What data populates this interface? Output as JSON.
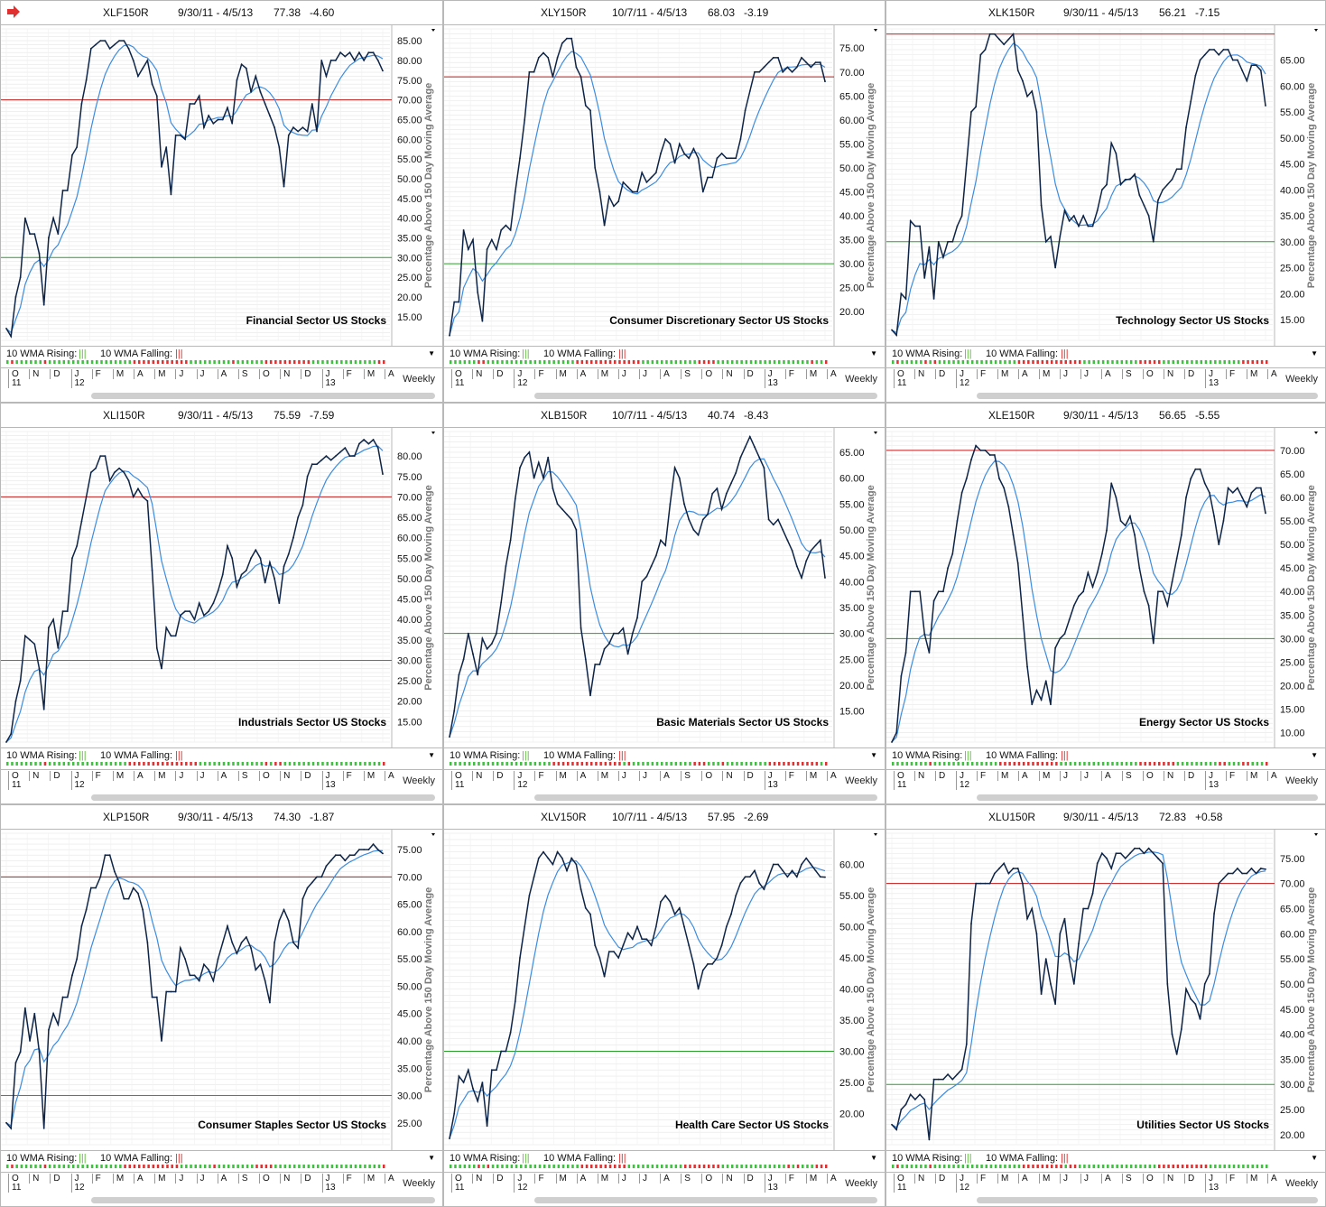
{
  "ui": {
    "wma_rising_label": "10 WMA Rising:",
    "wma_falling_label": "10 WMA Falling:",
    "weekly_label": "Weekly",
    "rising_marks": "|||",
    "falling_marks": "|||"
  },
  "colors": {
    "price": "#0d2447",
    "ma": "#3c8ce0",
    "upper": "#c01818",
    "lower": "#2aa02a",
    "grid": "#e6e6e6",
    "dot_green": "#40c040",
    "dot_red": "#e03030"
  },
  "x_axis": {
    "months": [
      "O",
      "N",
      "D",
      "J",
      "F",
      "M",
      "A",
      "M",
      "J",
      "J",
      "A",
      "S",
      "O",
      "N",
      "D",
      "J",
      "F",
      "M",
      "A"
    ],
    "years": [
      {
        "label": "11",
        "month_index": 0
      },
      {
        "label": "12",
        "month_index": 3
      },
      {
        "label": "13",
        "month_index": 15
      }
    ]
  },
  "chart_data": [
    {
      "type": "line",
      "symbol": "XLF150R",
      "range": "9/30/11 - 4/5/13",
      "last": "77.38",
      "change": "-4.60",
      "label": "Financial Sector US Stocks",
      "ylabel": "Percentage Above 150 Day Moving Average",
      "ylim": [
        9,
        88
      ],
      "yticks": [
        "85.00",
        "80.00",
        "75.00",
        "70.00",
        "65.00",
        "60.00",
        "55.00",
        "50.00",
        "45.00",
        "40.00",
        "35.00",
        "30.00",
        "25.00",
        "20.00",
        "15.00"
      ],
      "upper_line": 70,
      "lower_line": 30,
      "series": [
        {
          "values": [
            12,
            10,
            20,
            25,
            40,
            36,
            36,
            31,
            18,
            35,
            40,
            36,
            47,
            47,
            56,
            58,
            69,
            75,
            83,
            84,
            85,
            85,
            83,
            84,
            85,
            85,
            83,
            80,
            76,
            78,
            80,
            74,
            71,
            53,
            58,
            46,
            61,
            61,
            60,
            69,
            69,
            71,
            63,
            66,
            64,
            65,
            65,
            68,
            64,
            75,
            79,
            78,
            72,
            76,
            72,
            69,
            66,
            63,
            58,
            48,
            61,
            63,
            62,
            63,
            62,
            69,
            62,
            80,
            76,
            80,
            80,
            82,
            81,
            82,
            80,
            82,
            80,
            82,
            82,
            80,
            77.38
          ]
        }
      ]
    },
    {
      "type": "line",
      "symbol": "XLY150R",
      "range": "10/7/11 - 4/5/13",
      "last": "68.03",
      "change": "-3.19",
      "label": "Consumer Discretionary Sector US Stocks",
      "ylabel": "Percentage Above 150 Day Moving Average",
      "ylim": [
        14,
        79
      ],
      "yticks": [
        "75.00",
        "70.00",
        "65.00",
        "60.00",
        "55.00",
        "50.00",
        "45.00",
        "40.00",
        "35.00",
        "30.00",
        "25.00",
        "20.00"
      ],
      "upper_line": 69,
      "lower_line": 30,
      "series": [
        {
          "values": [
            15,
            22,
            22,
            37,
            33,
            35,
            24,
            18,
            33,
            35,
            33,
            37,
            38,
            37,
            45,
            52,
            60,
            70,
            70,
            73,
            74,
            73,
            69,
            73,
            76,
            77,
            77,
            71,
            69,
            63,
            62,
            50,
            45,
            38,
            44,
            42,
            43,
            47,
            46,
            45,
            45,
            49,
            47,
            48,
            49,
            53,
            56,
            55,
            51,
            55,
            53,
            52,
            54,
            52,
            45,
            48,
            48,
            52,
            53,
            52,
            52,
            52,
            56,
            62,
            66,
            70,
            70,
            71,
            72,
            73,
            73,
            70,
            71,
            70,
            71,
            73,
            72,
            71,
            72,
            72,
            68.03
          ]
        }
      ]
    },
    {
      "type": "line",
      "symbol": "XLK150R",
      "range": "9/30/11 - 4/5/13",
      "last": "56.21",
      "change": "-7.15",
      "label": "Technology Sector US Stocks",
      "ylabel": "Percentage Above 150 Day Moving Average",
      "ylim": [
        11,
        71
      ],
      "yticks": [
        "65.00",
        "60.00",
        "55.00",
        "50.00",
        "45.00",
        "40.00",
        "35.00",
        "30.00",
        "25.00",
        "20.00",
        "15.00"
      ],
      "upper_line": 70,
      "lower_line": 30,
      "series": [
        {
          "values": [
            13,
            12,
            20,
            19,
            34,
            33,
            33,
            23,
            29,
            19,
            30,
            27,
            30,
            30,
            33,
            35,
            45,
            55,
            56,
            66,
            67,
            70,
            70,
            69,
            68,
            69,
            70,
            63,
            61,
            58,
            59,
            55,
            37,
            30,
            31,
            25,
            31,
            36,
            34,
            35,
            33,
            35,
            33,
            33,
            36,
            40,
            41,
            49,
            47,
            41,
            42,
            42,
            43,
            39,
            37,
            35,
            30,
            38,
            40,
            41,
            42,
            44,
            44,
            52,
            57,
            62,
            65,
            66,
            67,
            67,
            66,
            67,
            67,
            65,
            65,
            63,
            61,
            64,
            64,
            63,
            56.21
          ]
        }
      ]
    },
    {
      "type": "line",
      "symbol": "XLI150R",
      "range": "9/30/11 - 4/5/13",
      "last": "75.59",
      "change": "-7.59",
      "label": "Industrials Sector US Stocks",
      "ylabel": "Percentage Above 150 Day Moving Average",
      "ylim": [
        10,
        86
      ],
      "yticks": [
        "80.00",
        "75.00",
        "70.00",
        "65.00",
        "60.00",
        "55.00",
        "50.00",
        "45.00",
        "40.00",
        "35.00",
        "30.00",
        "25.00",
        "20.00",
        "15.00"
      ],
      "upper_line": 70,
      "lower_line": 30,
      "series": [
        {
          "values": [
            10,
            12,
            20,
            25,
            36,
            35,
            34,
            28,
            18,
            38,
            40,
            33,
            42,
            42,
            55,
            58,
            64,
            70,
            76,
            77,
            80,
            80,
            74,
            76,
            77,
            76,
            74,
            70,
            72,
            70,
            69,
            52,
            33,
            28,
            38,
            36,
            36,
            41,
            42,
            42,
            40,
            44,
            41,
            42,
            44,
            47,
            51,
            58,
            55,
            48,
            51,
            52,
            55,
            57,
            55,
            49,
            54,
            50,
            44,
            53,
            56,
            60,
            65,
            68,
            75,
            78,
            78,
            79,
            80,
            79,
            80,
            81,
            82,
            80,
            80,
            83,
            84,
            83,
            84,
            82,
            75.59
          ]
        }
      ]
    },
    {
      "type": "line",
      "symbol": "XLB150R",
      "range": "10/7/11 - 4/5/13",
      "last": "40.74",
      "change": "-8.43",
      "label": "Basic Materials Sector US Stocks",
      "ylabel": "Percentage Above 150 Day Moving Average",
      "ylim": [
        9,
        69
      ],
      "yticks": [
        "65.00",
        "60.00",
        "55.00",
        "50.00",
        "45.00",
        "40.00",
        "35.00",
        "30.00",
        "25.00",
        "20.00",
        "15.00"
      ],
      "upper_line": 70,
      "lower_line": 30,
      "series": [
        {
          "values": [
            10,
            15,
            22,
            25,
            30,
            26,
            22,
            29,
            27,
            28,
            30,
            36,
            43,
            48,
            56,
            62,
            64,
            65,
            60,
            63,
            60,
            64,
            58,
            55,
            54,
            53,
            52,
            50,
            31,
            25,
            18,
            24,
            24,
            27,
            28,
            30,
            30,
            31,
            26,
            30,
            33,
            40,
            41,
            43,
            45,
            48,
            47,
            55,
            62,
            60,
            55,
            52,
            50,
            49,
            52,
            53,
            57,
            58,
            54,
            57,
            59,
            61,
            64,
            66,
            68,
            66,
            64,
            62,
            52,
            51,
            52,
            50,
            48,
            46,
            43,
            40.74,
            44,
            46,
            47,
            48,
            40.74
          ]
        }
      ]
    },
    {
      "type": "line",
      "symbol": "XLE150R",
      "range": "9/30/11 - 4/5/13",
      "last": "56.65",
      "change": "-5.55",
      "label": "Energy Sector US Stocks",
      "ylabel": "Percentage Above 150 Day Moving Average",
      "ylim": [
        8,
        74
      ],
      "yticks": [
        "70.00",
        "65.00",
        "60.00",
        "55.00",
        "50.00",
        "45.00",
        "40.00",
        "35.00",
        "30.00",
        "25.00",
        "20.00",
        "15.00",
        "10.00"
      ],
      "upper_line": 70,
      "lower_line": 30,
      "series": [
        {
          "values": [
            8,
            10,
            22,
            27,
            40,
            40,
            40,
            31,
            27,
            38,
            40,
            40,
            45,
            48,
            55,
            61,
            64,
            68,
            71,
            70,
            70,
            69,
            69,
            64,
            62,
            58,
            52,
            46,
            35,
            24,
            16,
            19,
            17,
            21,
            16,
            28,
            30,
            31,
            34,
            37,
            39,
            40,
            44,
            41,
            44,
            48,
            53,
            63,
            60,
            55,
            54,
            56,
            52,
            45,
            40,
            37,
            29,
            40,
            40,
            37,
            42,
            47,
            52,
            60,
            64,
            66,
            66,
            63,
            61,
            56,
            50,
            55,
            62,
            61,
            62,
            60,
            58,
            61,
            62,
            62,
            56.65
          ]
        }
      ]
    },
    {
      "type": "line",
      "symbol": "XLP150R",
      "range": "9/30/11 - 4/5/13",
      "last": "74.30",
      "change": "-1.87",
      "label": "Consumer Staples Sector US Stocks",
      "ylabel": "Percentage Above 150 Day Moving Average",
      "ylim": [
        21,
        78
      ],
      "yticks": [
        "75.00",
        "70.00",
        "65.00",
        "60.00",
        "55.00",
        "50.00",
        "45.00",
        "40.00",
        "35.00",
        "30.00",
        "25.00"
      ],
      "upper_line": 70,
      "lower_line": 30,
      "series": [
        {
          "values": [
            25,
            24,
            36,
            38,
            46,
            40,
            45,
            38,
            24,
            42,
            45,
            43,
            48,
            48,
            52,
            55,
            61,
            64,
            68,
            68,
            70,
            74,
            74,
            71,
            69,
            66,
            66,
            68,
            67,
            64,
            58,
            48,
            48,
            40,
            49,
            49,
            49,
            57,
            55,
            52,
            52,
            51,
            54,
            53,
            51,
            55,
            58,
            61,
            58,
            56,
            58,
            59,
            57,
            53,
            54,
            51,
            47,
            58,
            62,
            64,
            62,
            58,
            57,
            66,
            68,
            69,
            70,
            70,
            72,
            73,
            74,
            74,
            73,
            74,
            74,
            75,
            75,
            75,
            76,
            75,
            74.3
          ]
        }
      ]
    },
    {
      "type": "line",
      "symbol": "XLV150R",
      "range": "10/7/11 - 4/5/13",
      "last": "57.95",
      "change": "-2.69",
      "label": "Health Care Sector US Stocks",
      "ylabel": "Percentage Above 150 Day Moving Average",
      "ylim": [
        15,
        65
      ],
      "yticks": [
        "60.00",
        "55.00",
        "50.00",
        "45.00",
        "40.00",
        "35.00",
        "30.00",
        "25.00",
        "20.00"
      ],
      "upper_line": 70,
      "lower_line": 30,
      "series": [
        {
          "values": [
            16,
            20,
            26,
            25,
            27,
            24,
            22,
            25,
            18,
            27,
            27,
            30,
            30,
            33,
            38,
            45,
            50,
            55,
            58,
            61,
            62,
            61,
            60,
            62,
            61,
            59,
            61,
            60,
            56,
            53,
            52,
            47,
            45,
            42,
            46,
            46,
            45,
            47,
            49,
            48,
            50,
            48,
            48,
            47,
            50,
            54,
            55,
            54,
            52,
            53,
            50,
            47,
            44,
            40,
            43,
            44,
            44,
            45,
            47,
            50,
            52,
            55,
            57,
            58,
            58,
            59,
            57,
            56,
            58,
            60,
            60,
            59,
            58,
            59,
            58,
            60,
            61,
            60,
            59,
            58,
            57.95
          ]
        }
      ]
    },
    {
      "type": "line",
      "symbol": "XLU150R",
      "range": "9/30/11 - 4/5/13",
      "last": "72.83",
      "change": "+0.58",
      "label": "Utilities Sector US Stocks",
      "ylabel": "Percentage Above 150 Day Moving Average",
      "ylim": [
        18,
        80
      ],
      "yticks": [
        "75.00",
        "70.00",
        "65.00",
        "60.00",
        "55.00",
        "50.00",
        "45.00",
        "40.00",
        "35.00",
        "30.00",
        "25.00",
        "20.00"
      ],
      "upper_line": 70,
      "lower_line": 30,
      "series": [
        {
          "values": [
            22,
            21,
            25,
            26,
            28,
            27,
            28,
            27,
            19,
            31,
            31,
            31,
            32,
            31,
            32,
            33,
            38,
            62,
            70,
            70,
            70,
            70,
            72,
            73,
            74,
            72,
            73,
            73,
            70,
            63,
            65,
            60,
            48,
            55,
            50,
            46,
            60,
            63,
            55,
            50,
            58,
            65,
            65,
            68,
            74,
            76,
            75,
            73,
            76,
            76,
            75,
            76,
            77,
            77,
            76,
            77,
            76,
            75,
            74,
            50,
            40,
            36,
            41,
            49,
            47,
            46,
            43,
            50,
            52,
            64,
            70,
            71,
            72,
            72,
            73,
            72,
            72,
            73,
            72,
            73,
            72.83
          ]
        }
      ]
    }
  ]
}
